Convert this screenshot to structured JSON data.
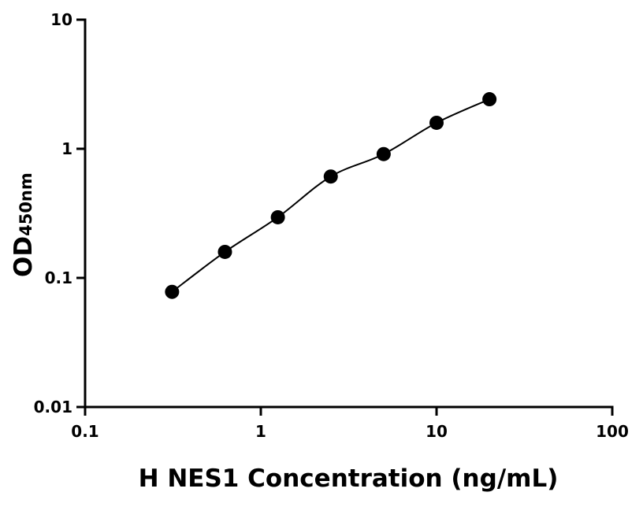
{
  "chart_data": {
    "type": "scatter",
    "title": "",
    "xlabel": "H NES1 Concentration (ng/mL)",
    "ylabel_main": "OD",
    "ylabel_sub": "450nm",
    "x_scale": "log",
    "y_scale": "log",
    "xlim": [
      0.1,
      100
    ],
    "ylim": [
      0.01,
      10
    ],
    "x_ticks": [
      0.1,
      1,
      10,
      100
    ],
    "x_tick_labels": [
      "0.1",
      "1",
      "10",
      "100"
    ],
    "y_ticks": [
      0.01,
      0.1,
      1,
      10
    ],
    "y_tick_labels": [
      "0.01",
      "0.1",
      "1",
      "10"
    ],
    "grid": false,
    "legend": "none",
    "fit_curve": true,
    "marker_color": "#000000",
    "x": [
      0.3125,
      0.625,
      1.25,
      2.5,
      5,
      10,
      20
    ],
    "y": [
      0.078,
      0.159,
      0.295,
      0.61,
      0.91,
      1.59,
      2.42
    ]
  }
}
